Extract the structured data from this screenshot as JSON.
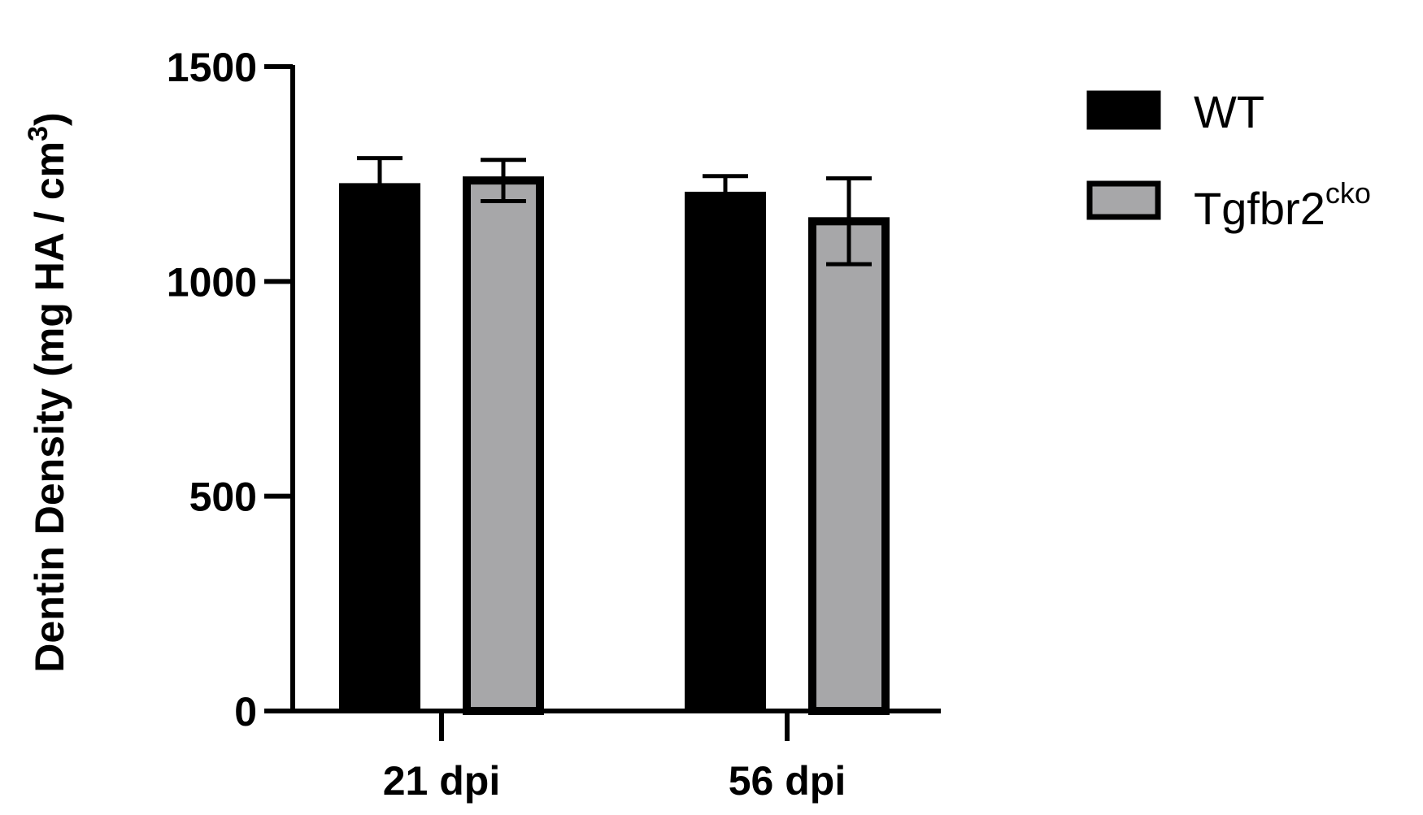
{
  "chart_data": {
    "type": "bar",
    "categories": [
      "21 dpi",
      "56 dpi"
    ],
    "series": [
      {
        "name": "WT",
        "values": [
          1225,
          1205
        ],
        "errors": [
          62,
          40
        ],
        "color": "#000000"
      },
      {
        "name": "Tgfbr2",
        "name_superscript": "cko",
        "values": [
          1235,
          1140
        ],
        "errors": [
          48,
          100
        ],
        "color": "#a7a7a9"
      }
    ],
    "ylabel": "Dentin Density (mg HA / cm",
    "ylabel_superscript": "3",
    "ylabel_close": ")",
    "ylim": [
      0,
      1500
    ],
    "yticks": [
      0,
      500,
      1000,
      1500
    ],
    "xlabel": "",
    "title": "",
    "grid": false,
    "legend_position": "right",
    "error_bars": "upper for WT, both directions for Tgfbr2"
  }
}
